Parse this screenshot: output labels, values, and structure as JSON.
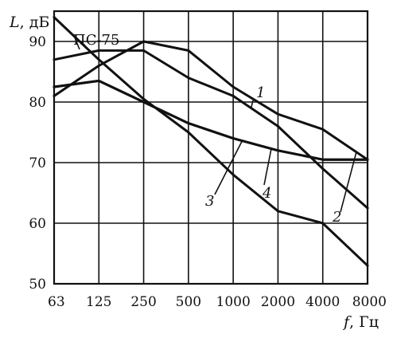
{
  "chart_data": {
    "type": "line",
    "title": "",
    "x_scale": "log2-categorical",
    "categories": [
      "63",
      "125",
      "250",
      "500",
      "1000",
      "2000",
      "4000",
      "8000"
    ],
    "ylim": [
      50,
      95
    ],
    "yticks": [
      50,
      60,
      70,
      80,
      90
    ],
    "xlabel_var": "f",
    "xlabel_unit": ", Гц",
    "ylabel_var": "L",
    "ylabel_unit": ", дБ",
    "grid": true,
    "series": [
      {
        "name": "ПС-75",
        "values": [
          94,
          87,
          80.5,
          75,
          68,
          62,
          60,
          53
        ]
      },
      {
        "name": "1",
        "values": [
          87,
          88.5,
          88.5,
          84,
          81,
          76,
          69,
          62.5
        ]
      },
      {
        "name": "2",
        "values": [
          81,
          86,
          90,
          88.5,
          82.5,
          78,
          75.5,
          70.5
        ]
      },
      {
        "name": "3",
        "values": [
          82.5,
          83.5,
          80,
          76.5,
          74,
          72,
          70.5,
          70.5
        ]
      },
      {
        "name": "4",
        "values": [
          82.5,
          83.5,
          80,
          76.5,
          74,
          72,
          70.5,
          70.5
        ]
      }
    ]
  }
}
